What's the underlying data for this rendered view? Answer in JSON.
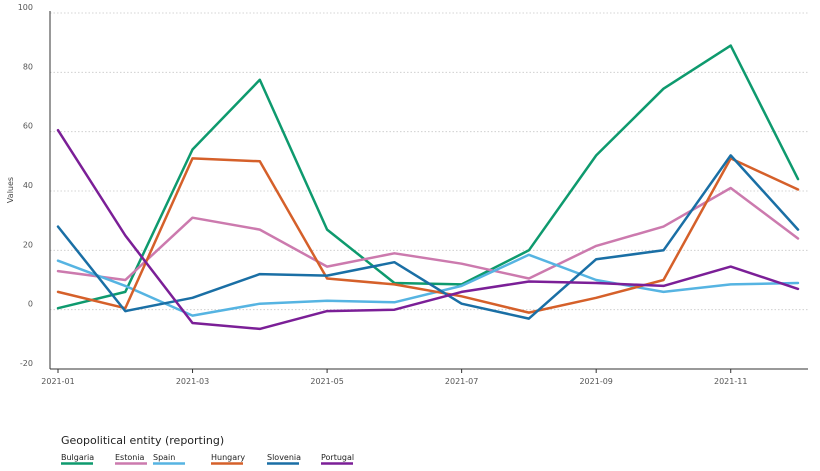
{
  "chart_data": {
    "type": "line",
    "ylabel": "Values",
    "ylim": [
      -20,
      100
    ],
    "yticks": [
      -20,
      0,
      20,
      40,
      60,
      80,
      100
    ],
    "grid": "horizontal dotted",
    "x": [
      "2021-01",
      "2021-02",
      "2021-03",
      "2021-04",
      "2021-05",
      "2021-06",
      "2021-07",
      "2021-08",
      "2021-09",
      "2021-10",
      "2021-11",
      "2021-12"
    ],
    "xtick_labels": [
      "2021-01",
      "2021-03",
      "2021-05",
      "2021-07",
      "2021-09",
      "2021-11"
    ],
    "legend_title": "Geopolitical entity (reporting)",
    "legend_position": "bottom-left",
    "series": [
      {
        "name": "Bulgaria",
        "color": "#0e9a6e",
        "values": [
          0.5,
          6,
          54,
          77.5,
          27,
          9,
          8.5,
          20,
          52,
          74.5,
          89,
          44
        ]
      },
      {
        "name": "Estonia",
        "color": "#cc7aae",
        "values": [
          13,
          10,
          31,
          27,
          14.5,
          19,
          15.5,
          10.5,
          21.5,
          28,
          41,
          24
        ]
      },
      {
        "name": "Spain",
        "color": "#56b4e2",
        "values": [
          16.5,
          8,
          -2,
          2,
          3,
          2.5,
          8,
          18.5,
          10,
          6,
          8.5,
          9
        ]
      },
      {
        "name": "Hungary",
        "color": "#d5602a",
        "values": [
          6,
          0.5,
          51,
          50,
          10.5,
          8.5,
          4.5,
          -1,
          4,
          10,
          51,
          40.5
        ]
      },
      {
        "name": "Slovenia",
        "color": "#1a6fa5",
        "values": [
          28,
          -0.5,
          4,
          12,
          11.5,
          16,
          2,
          -3,
          17,
          20,
          52,
          27
        ]
      },
      {
        "name": "Portugal",
        "color": "#7b1f97",
        "values": [
          60.5,
          25,
          -4.5,
          -6.5,
          -0.5,
          0,
          6,
          9.5,
          9,
          8,
          14.5,
          7
        ]
      }
    ]
  }
}
